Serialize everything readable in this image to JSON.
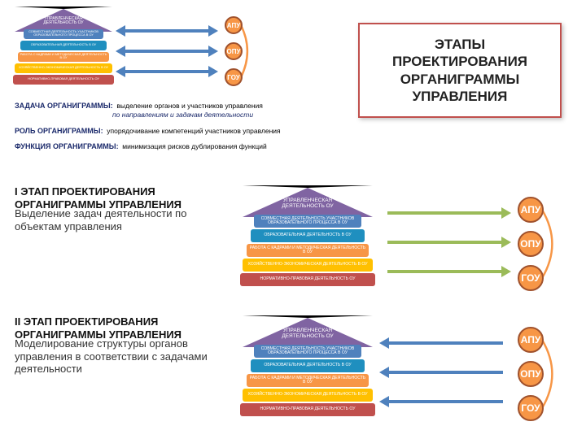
{
  "title_box": "ЭТАПЫ ПРОЕКТИРОВАНИЯ ОРГАНИГРАММЫ УПРАВЛЕНИЯ",
  "colors": {
    "roof": "#8064a2",
    "band1": "#4f81bd",
    "band2": "#1f8fbf",
    "band3": "#f79646",
    "band4": "#ffc000",
    "band5": "#c0504d",
    "band6": "#9bbb59",
    "arrow_biblue": "#4f81bd",
    "arrow_green": "#9bbb59",
    "arrow_blue": "#4f81bd",
    "circ_fill": "#f79646",
    "circ_border": "#a0522d",
    "link": "#f79646",
    "title_border": "#c0504d",
    "text_dark": "#1b2a6b"
  },
  "house_top_label": "УПРАВЛЕНЧЕСКАЯ\nДЕЯТЕЛЬНОСТЬ ОУ",
  "house_bands": [
    "СОВМЕСТНАЯ ДЕЯТЕЛЬНОСТЬ УЧАСТНИКОВ ОБРАЗОВАТЕЛЬНОГО ПРОЦЕССА В ОУ",
    "ОБРАЗОВАТЕЛЬНАЯ ДЕЯТЕЛЬНОСТЬ В ОУ",
    "РАБОТА С КАДРАМИ И МЕТОДИЧЕСКАЯ ДЕЯТЕЛЬНОСТЬ В ОУ",
    "ХОЗЯЙСТВЕННО-ЭКОНОМИЧЕСКАЯ ДЕЯТЕЛЬНОСТЬ В ОУ",
    "НОРМАТИВНО-ПРАВОВАЯ ДЕЯТЕЛЬНОСТЬ ОУ"
  ],
  "circles": [
    "АПУ",
    "ОПУ",
    "ГОУ"
  ],
  "info_lines": [
    {
      "label": "ЗАДАЧА ОРГАНИГРАММЫ:",
      "text": "выделение органов и участников управления",
      "highlight": "по направлениям и задачам деятельности"
    },
    {
      "label": "РОЛЬ ОРГАНИГРАММЫ:",
      "text": "упорядочивание компетенций участников управления"
    },
    {
      "label": "ФУНКЦИЯ ОРГАНИГРАММЫ:",
      "text": "минимизация рисков дублирования функций"
    }
  ],
  "stages": [
    {
      "num": "I",
      "title": "ЭТАП ПРОЕКТИРОВАНИЯ ОРГАНИГРАММЫ УПРАВЛЕНИЯ",
      "desc": "Выделение задач деятельности по объектам управления",
      "arrow_dir": "right",
      "arrow_color": "#9bbb59"
    },
    {
      "num": "II",
      "title": "ЭТАП ПРОЕКТИРОВАНИЯ ОРГАНИГРАММЫ УПРАВЛЕНИЯ",
      "desc": "Моделирование структуры органов управления в соответствии с задачами деятельности",
      "arrow_dir": "left",
      "arrow_color": "#4f81bd"
    }
  ],
  "layout": {
    "mini_house_x": 0,
    "mini_house_w": 120,
    "mini_roof_h": 28,
    "mini_band_h": 12,
    "mini_circ_size": 22,
    "mini_circ_font": 8,
    "stage_circ_size": 32,
    "stage_circ_font": 12,
    "stage_house_w": 160,
    "stage_roof_h": 36,
    "stage_band_h": 16
  }
}
